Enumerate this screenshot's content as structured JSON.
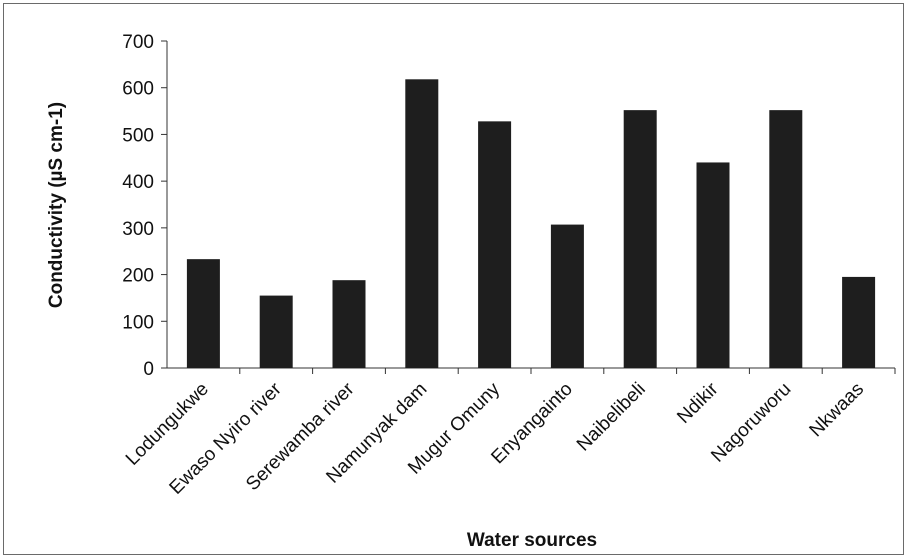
{
  "chart_data": {
    "type": "bar",
    "title": "",
    "xlabel": "Water sources",
    "ylabel": "Conductivity (µS cm-1)",
    "ylim": [
      0,
      700
    ],
    "yticks": [
      "0",
      "100",
      "200",
      "300",
      "400",
      "500",
      "600",
      "700"
    ],
    "categories": [
      "Lodungukwe",
      "Ewaso Nyiro river",
      "Serewamba river",
      "Namunyak dam",
      "Mugur Omuny",
      "Enyangainto",
      "Naibelibeli",
      "Ndikir",
      "Nagoruworu",
      "Nkwaas"
    ],
    "values": [
      233,
      155,
      188,
      618,
      528,
      307,
      552,
      440,
      552,
      195
    ],
    "grid": false,
    "legend": "none",
    "bar_color": "#1e1e1e"
  }
}
